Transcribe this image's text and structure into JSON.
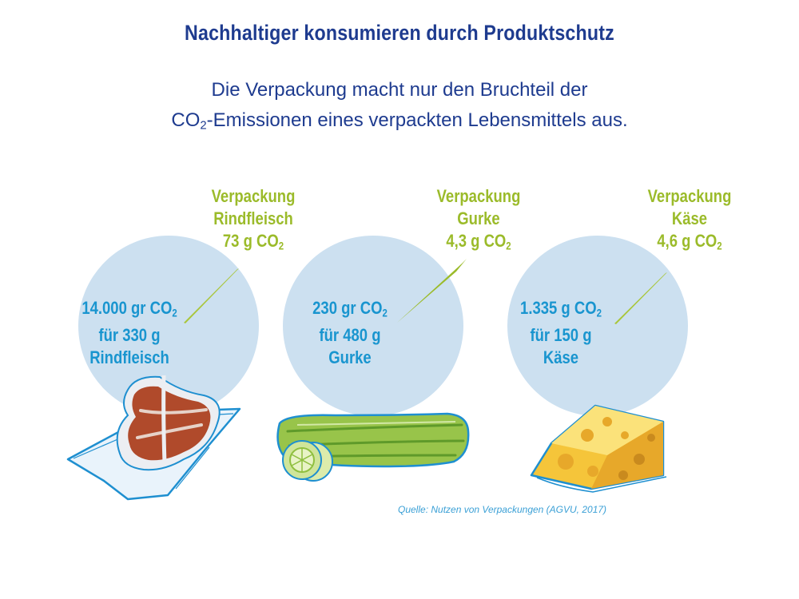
{
  "title": "Nachhaltiger konsumieren durch Produktschutz",
  "subtitle": {
    "line1": "Die Verpackung macht nur den Bruchteil der",
    "line2_pre": "CO",
    "line2_sub": "2",
    "line2_post": "-Emissionen eines verpackten Lebensmittels aus."
  },
  "items": [
    {
      "packaging": {
        "line1": "Verpackung",
        "line2": "Rindfleisch",
        "value": "73 g CO",
        "sub": "2"
      },
      "food": {
        "line1_pre": "14.000 gr CO",
        "line1_sub": "2",
        "line2": "für 330 g",
        "line3": "Rindfleisch"
      },
      "icon": "steak-icon"
    },
    {
      "packaging": {
        "line1": "Verpackung",
        "line2": "Gurke",
        "value": "4,3 g CO",
        "sub": "2"
      },
      "food": {
        "line1_pre": "230 gr CO",
        "line1_sub": "2",
        "line2": "für 480 g",
        "line3": "Gurke"
      },
      "icon": "cucumber-icon"
    },
    {
      "packaging": {
        "line1": "Verpackung",
        "line2": "Käse",
        "value": "4,6 g CO",
        "sub": "2"
      },
      "food": {
        "line1_pre": "1.335 g CO",
        "line1_sub": "2",
        "line2": "für 150 g",
        "line3": "Käse"
      },
      "icon": "cheese-icon"
    }
  ],
  "source": "Quelle: Nutzen von Verpackungen (AGVU, 2017)",
  "colors": {
    "title": "#1e3b8f",
    "packaging_text": "#9bbb2a",
    "food_text": "#1995cf",
    "circle": "#cce0f0",
    "outline": "#1e8fd0"
  }
}
